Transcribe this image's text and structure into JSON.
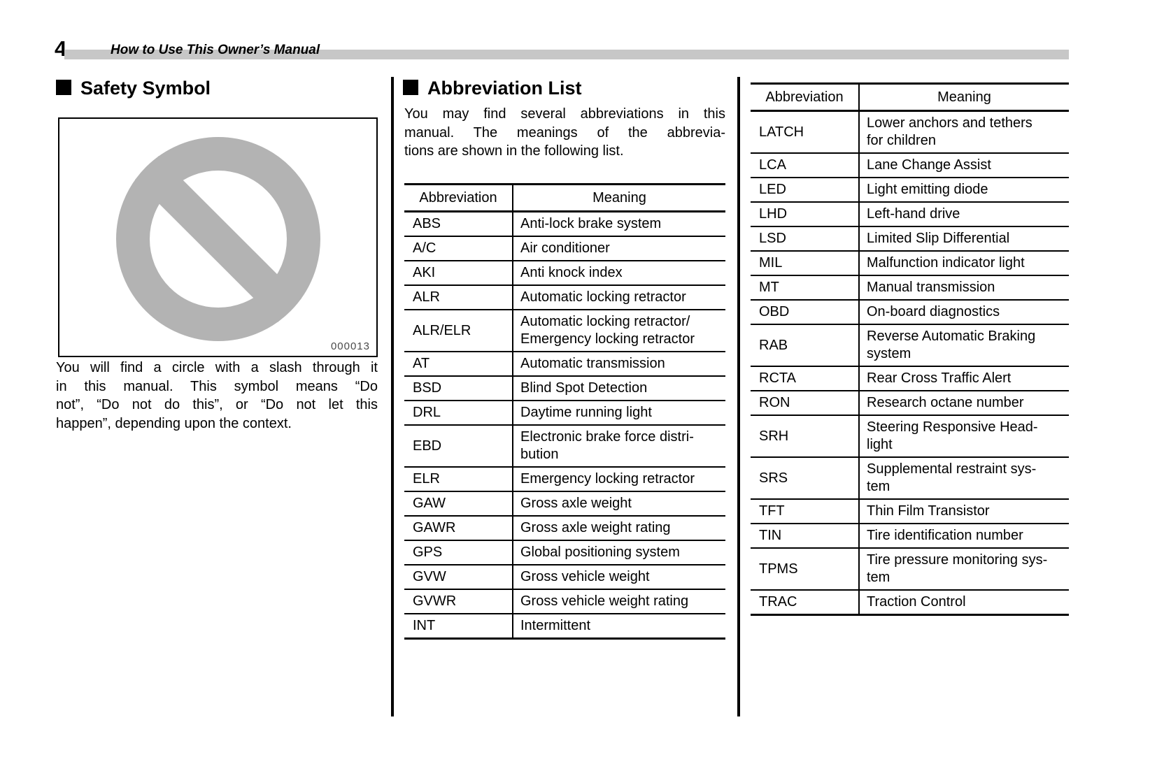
{
  "page": {
    "number": "4",
    "header_title": "How to Use This Owner’s Manual"
  },
  "colors": {
    "header_bar_gray": "#c7c7c7",
    "symbol_gray": "#b3b3b3"
  },
  "safety": {
    "heading": "Safety Symbol",
    "symbol_icon": "no-symbol-circle-slash",
    "image_caption": "000013",
    "paragraph_lines": [
      "You will find a circle with a slash through it",
      "in this manual. This symbol means “Do",
      "not”, “Do not do this”, or “Do not let this",
      "happen”, depending upon the context."
    ]
  },
  "abbreviation": {
    "heading": "Abbreviation List",
    "intro_lines": [
      "You may find several abbreviations in this",
      "manual. The meanings of the abbrevia-",
      "tions are shown in the following list."
    ],
    "columns": [
      "Abbreviation",
      "Meaning"
    ],
    "table1": {
      "rows": [
        {
          "abbr": "ABS",
          "meaning": "Anti-lock brake system"
        },
        {
          "abbr": "A/C",
          "meaning": "Air conditioner"
        },
        {
          "abbr": "AKI",
          "meaning": "Anti knock index"
        },
        {
          "abbr": "ALR",
          "meaning": "Automatic locking retractor"
        },
        {
          "abbr": "ALR/ELR",
          "meaning": "Automatic locking retractor/\nEmergency locking retractor"
        },
        {
          "abbr": "AT",
          "meaning": "Automatic transmission"
        },
        {
          "abbr": "BSD",
          "meaning": "Blind Spot Detection"
        },
        {
          "abbr": "DRL",
          "meaning": "Daytime running light"
        },
        {
          "abbr": "EBD",
          "meaning": "Electronic brake force distri-\nbution"
        },
        {
          "abbr": "ELR",
          "meaning": "Emergency locking retractor"
        },
        {
          "abbr": "GAW",
          "meaning": "Gross axle weight"
        },
        {
          "abbr": "GAWR",
          "meaning": "Gross axle weight rating"
        },
        {
          "abbr": "GPS",
          "meaning": "Global positioning system"
        },
        {
          "abbr": "GVW",
          "meaning": "Gross vehicle weight"
        },
        {
          "abbr": "GVWR",
          "meaning": "Gross vehicle weight rating"
        },
        {
          "abbr": "INT",
          "meaning": "Intermittent"
        }
      ]
    },
    "table2": {
      "rows": [
        {
          "abbr": "LATCH",
          "meaning": "Lower anchors and tethers\nfor children"
        },
        {
          "abbr": "LCA",
          "meaning": "Lane Change Assist"
        },
        {
          "abbr": "LED",
          "meaning": "Light emitting diode"
        },
        {
          "abbr": "LHD",
          "meaning": "Left-hand drive"
        },
        {
          "abbr": "LSD",
          "meaning": "Limited Slip Differential"
        },
        {
          "abbr": "MIL",
          "meaning": "Malfunction indicator light"
        },
        {
          "abbr": "MT",
          "meaning": "Manual transmission"
        },
        {
          "abbr": "OBD",
          "meaning": "On-board diagnostics"
        },
        {
          "abbr": "RAB",
          "meaning": "Reverse Automatic Braking\nsystem"
        },
        {
          "abbr": "RCTA",
          "meaning": "Rear Cross Traffic Alert"
        },
        {
          "abbr": "RON",
          "meaning": "Research octane number"
        },
        {
          "abbr": "SRH",
          "meaning": "Steering Responsive Head-\nlight"
        },
        {
          "abbr": "SRS",
          "meaning": "Supplemental restraint sys-\ntem"
        },
        {
          "abbr": "TFT",
          "meaning": "Thin Film Transistor"
        },
        {
          "abbr": "TIN",
          "meaning": "Tire identification number"
        },
        {
          "abbr": "TPMS",
          "meaning": "Tire pressure monitoring sys-\ntem"
        },
        {
          "abbr": "TRAC",
          "meaning": "Traction Control"
        }
      ]
    }
  }
}
